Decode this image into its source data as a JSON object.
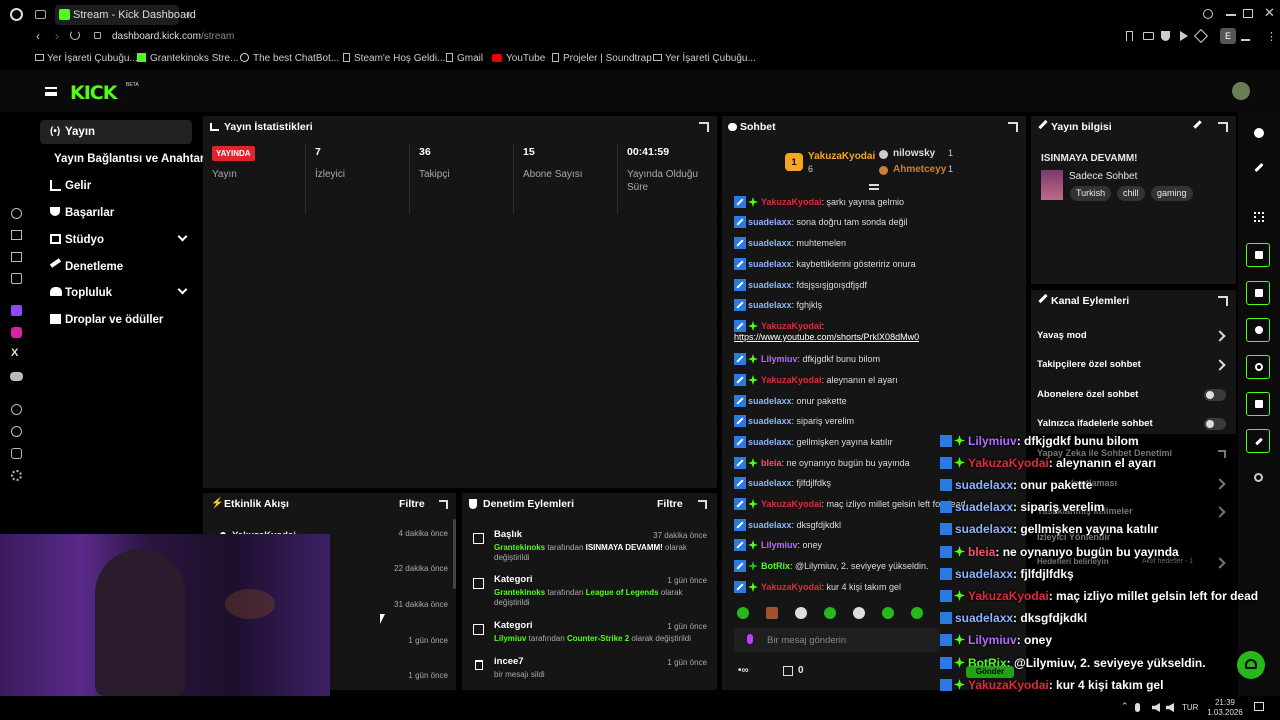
{
  "browser": {
    "tab_title": "Stream - Kick Dashboard",
    "url_domain": "dashboard.kick.com",
    "url_path": "/stream",
    "profile": "E"
  },
  "bookmarks": [
    "Yer İşareti Çubuğu...",
    "Grantekinoks Stre...",
    "The best ChatBot...",
    "Steam'e Hoş Geldi...",
    "Gmail",
    "YouTube",
    "Projeler | Soundtrap",
    "Yer İşareti Çubuğu..."
  ],
  "header": {
    "logo": "KICK",
    "logo_badge": "BETA"
  },
  "nav": {
    "items": [
      "Yayın",
      "Yayın Bağlantısı ve Anahtarı",
      "Gelir",
      "Başarılar",
      "Stüdyo",
      "Denetleme",
      "Topluluk",
      "Droplar ve ödüller"
    ]
  },
  "stats": {
    "title": "Yayın İstatistikleri",
    "live_badge": "YAYINDA",
    "live_label": "Yayın",
    "items": [
      {
        "value": "7",
        "label": "İzleyici"
      },
      {
        "value": "36",
        "label": "Takipçi"
      },
      {
        "value": "15",
        "label": "Abone Sayısı"
      },
      {
        "value": "00:41:59",
        "label": "Yayında Olduğu Süre"
      }
    ]
  },
  "activity": {
    "title": "Etkinlik Akışı",
    "filter": "Filtre",
    "entries": [
      {
        "name": "YakuzaKyodai",
        "time": "4 dakika önce"
      },
      {
        "time": "22 dakika önce"
      },
      {
        "time": "31 dakika önce"
      },
      {
        "time": "1 gün önce"
      },
      {
        "time": "1 gün önce"
      }
    ]
  },
  "moderation": {
    "title": "Denetim Eylemleri",
    "filter": "Filtre",
    "entries": [
      {
        "head": "Başlık",
        "time": "37 dakika önce",
        "user": "Grantekinoks",
        "mid": " tarafından ",
        "value": "ISINMAYA DEVAMM!",
        "tail": " olarak değiştirildi"
      },
      {
        "head": "Kategori",
        "time": "1 gün önce",
        "user": "Grantekinoks",
        "mid": " tarafından ",
        "value": "League of Legends",
        "tail": " olarak değiştirildi"
      },
      {
        "head": "Kategori",
        "time": "1 gün önce",
        "user": "Lilymiuv",
        "mid": " tarafından ",
        "value": "Counter-Strike 2",
        "tail": " olarak değiştirildi"
      },
      {
        "head": "incee7",
        "time": "1 gün önce",
        "desc": "bir mesajı sildi"
      }
    ]
  },
  "chat": {
    "title": "Sohbet",
    "top": [
      {
        "rank": "1",
        "name": "YakuzaKyodai",
        "count": "6"
      },
      {
        "name": "nilowsky",
        "count": "1"
      },
      {
        "name": "Ahmetceyy",
        "count": "1"
      }
    ],
    "messages": [
      {
        "user": "YakuzaKyodai",
        "text": ": şarkı yayına gelmio",
        "color": "#e02a3c"
      },
      {
        "user": "suadelaxx",
        "text": ": sona doğru tam sonda değil",
        "color": "#8fb3ff"
      },
      {
        "user": "suadelaxx",
        "text": ": muhtemelen",
        "color": "#8fb3ff"
      },
      {
        "user": "suadelaxx",
        "text": ": kaybettiklerini gösteririz onura",
        "color": "#8fb3ff"
      },
      {
        "user": "suadelaxx",
        "text": ": fdsjşsışjgoışdfjşdf",
        "color": "#8fb3ff"
      },
      {
        "user": "suadelaxx",
        "text": ": fghjklş",
        "color": "#8fb3ff"
      },
      {
        "user": "YakuzaKyodai",
        "text": ":",
        "color": "#e02a3c"
      },
      {
        "user": "",
        "text": "https://www.youtube.com/shorts/PrklX08dMw0",
        "color": "#fff"
      },
      {
        "user": "Lilymiuv",
        "text": ": dfkjgdkf bunu bilom",
        "color": "#b46bff"
      },
      {
        "user": "YakuzaKyodai",
        "text": ": aleynanın el ayarı",
        "color": "#e02a3c"
      },
      {
        "user": "suadelaxx",
        "text": ": onur pakette",
        "color": "#8fb3ff"
      },
      {
        "user": "suadelaxx",
        "text": ": sipariş verelim",
        "color": "#8fb3ff"
      },
      {
        "user": "suadelaxx",
        "text": ": gellmişken yayına katılır",
        "color": "#8fb3ff"
      },
      {
        "user": "bleia",
        "text": ": ne oynanıyo bugün bu yayında",
        "color": "#ff4d6d"
      },
      {
        "user": "suadelaxx",
        "text": ": fjlfdjlfdkş",
        "color": "#8fb3ff"
      },
      {
        "user": "YakuzaKyodai",
        "text": ": maç izliyo millet gelsin left for dead",
        "color": "#e02a3c"
      },
      {
        "user": "suadelaxx",
        "text": ": dksgfdjkdkl",
        "color": "#8fb3ff"
      },
      {
        "user": "Lilymiuv",
        "text": ": oney",
        "color": "#b46bff"
      },
      {
        "user": "BotRix",
        "text": ": @Lilymiuv, 2. seviyeye yükseldin.",
        "color": "#53fc18"
      },
      {
        "user": "YakuzaKyodai",
        "text": ": kur 4 kişi takım gel",
        "color": "#e02a3c"
      }
    ],
    "input_placeholder": "Bir mesaj gönderin",
    "points": "0",
    "send": "Gönder"
  },
  "info": {
    "title": "Yayın bilgisi",
    "stream_title": "ISINMAYA DEVAMM!",
    "chat_mode": "Sadece Sohbet",
    "tags": [
      "Turkish",
      "chill",
      "gaming"
    ]
  },
  "channel": {
    "title": "Kanal Eylemleri",
    "rows": [
      "Yavaş mod",
      "Takipçilere özel sohbet",
      "Abonelere özel sohbet",
      "Yalnızca ifadelerle sohbet"
    ],
    "faded": [
      "Yapay Zeka ile Sohbet Denetimi",
      "Yasaklanmış kelimeler",
      "İzleyici Yönlendir",
      "Hedefleri belirleyin",
      "Aktif hedefler - 1"
    ],
    "partial": "kısıtlaması"
  },
  "overlay": {
    "kick_count": "6"
  },
  "taskbar": {
    "lang": "TUR",
    "time": "21:39",
    "date": "1.03.2026"
  },
  "colors": {
    "accent": "#53fc18",
    "live": "#e0242a"
  }
}
